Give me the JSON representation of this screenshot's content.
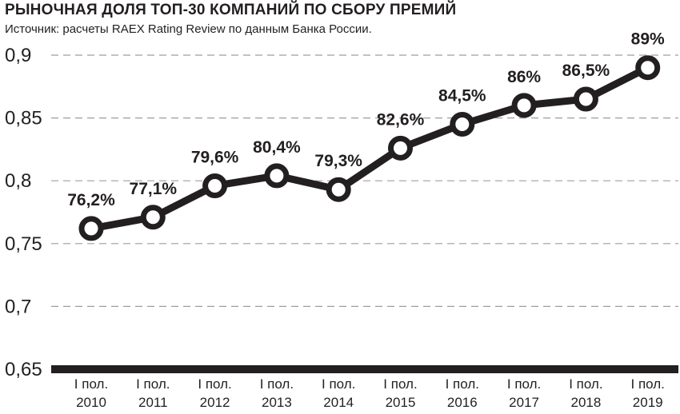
{
  "chart_data": {
    "type": "line",
    "title": "РЫНОЧНАЯ ДОЛЯ ТОП-30 КОМПАНИЙ ПО СБОРУ ПРЕМИЙ",
    "subtitle": "Источник: расчеты RAEX Rating Review по данным Банка России.",
    "categories": [
      [
        "I пол.",
        "2010"
      ],
      [
        "I пол.",
        "2011"
      ],
      [
        "I пол.",
        "2012"
      ],
      [
        "I пол.",
        "2013"
      ],
      [
        "I пол.",
        "2014"
      ],
      [
        "I пол.",
        "2015"
      ],
      [
        "I пол.",
        "2016"
      ],
      [
        "I пол.",
        "2017"
      ],
      [
        "I пол.",
        "2018"
      ],
      [
        "I пол.",
        "2019"
      ]
    ],
    "values": [
      0.762,
      0.771,
      0.796,
      0.804,
      0.793,
      0.826,
      0.845,
      0.86,
      0.865,
      0.89
    ],
    "data_labels": [
      "76,2%",
      "77,1%",
      "79,6%",
      "80,4%",
      "79,3%",
      "82,6%",
      "84,5%",
      "86%",
      "86,5%",
      "89%"
    ],
    "y_ticks": [
      "0,9",
      "0,85",
      "0,8",
      "0,75",
      "0,7",
      "0,65"
    ],
    "y_tick_values": [
      0.9,
      0.85,
      0.8,
      0.75,
      0.7,
      0.65
    ],
    "ylim": [
      0.65,
      0.9
    ],
    "grid": "horizontal-dashed",
    "legend": "none",
    "colors": {
      "line": "#231f20",
      "marker_fill": "#ffffff",
      "grid": "#9d9d9d",
      "text": "#231f20"
    }
  }
}
